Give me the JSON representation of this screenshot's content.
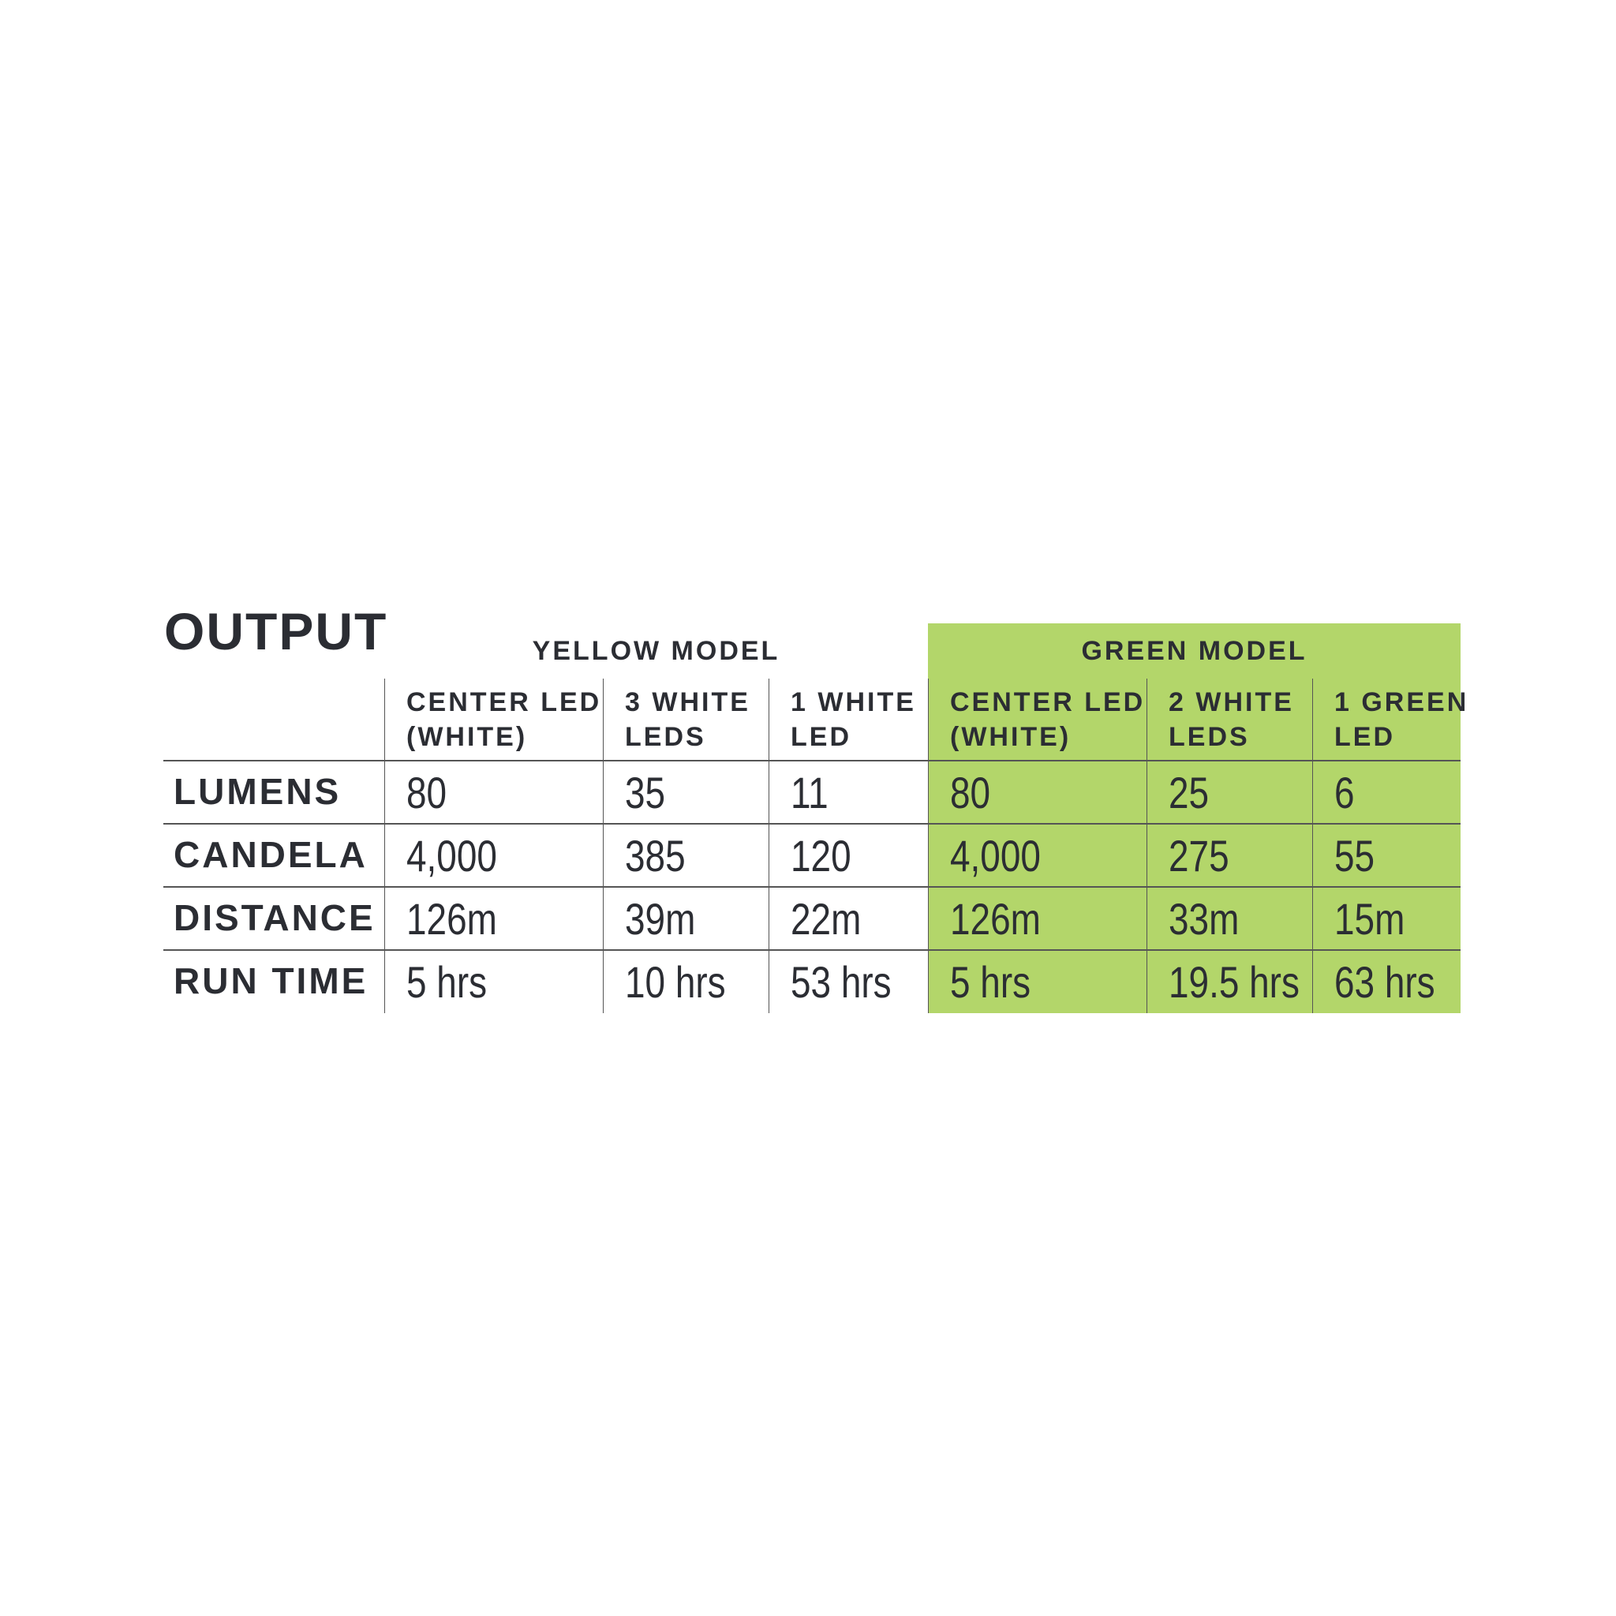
{
  "chart_data": {
    "type": "table",
    "title": "OUTPUT",
    "groups": [
      {
        "label": "YELLOW MODEL",
        "color": "#ffffff",
        "columns": [
          "CENTER LED\n(WHITE)",
          "3 WHITE\nLEDS",
          "1 WHITE\nLED"
        ]
      },
      {
        "label": "GREEN MODEL",
        "color": "#b3d66a",
        "columns": [
          "CENTER LED\n(WHITE)",
          "2 WHITE\nLEDS",
          "1 GREEN\nLED"
        ]
      }
    ],
    "rows": [
      {
        "label": "LUMENS",
        "values": [
          "80",
          "35",
          "11",
          "80",
          "25",
          "6"
        ]
      },
      {
        "label": "CANDELA",
        "values": [
          "4,000",
          "385",
          "120",
          "4,000",
          "275",
          "55"
        ]
      },
      {
        "label": "DISTANCE",
        "values": [
          "126m",
          "39m",
          "22m",
          "126m",
          "33m",
          "15m"
        ]
      },
      {
        "label": "RUN TIME",
        "values": [
          "5 hrs",
          "10 hrs",
          "53 hrs",
          "5 hrs",
          "19.5 hrs",
          "63 hrs"
        ]
      }
    ]
  }
}
